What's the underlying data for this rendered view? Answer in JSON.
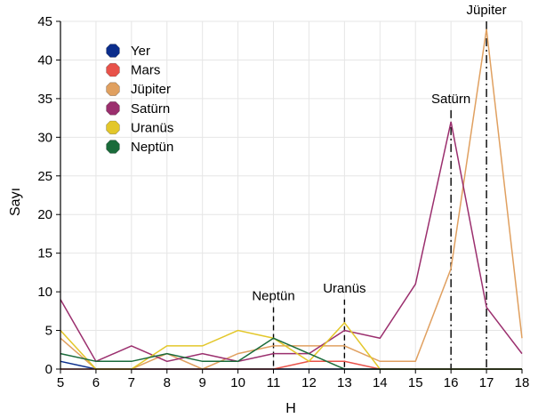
{
  "chart_data": {
    "type": "line",
    "xlabel": "H",
    "ylabel": "Sayı",
    "xlim": [
      5,
      18
    ],
    "ylim": [
      0,
      45
    ],
    "x_ticks": [
      5,
      6,
      7,
      8,
      9,
      10,
      11,
      12,
      13,
      14,
      15,
      16,
      17,
      18
    ],
    "y_ticks": [
      0,
      5,
      10,
      15,
      20,
      25,
      30,
      35,
      40,
      45
    ],
    "grid": true,
    "legend_position": "top-left",
    "x": [
      5,
      6,
      7,
      8,
      9,
      10,
      11,
      12,
      13,
      14,
      15,
      16,
      17,
      18
    ],
    "series": [
      {
        "name": "Yer",
        "color": "#0b2d8c",
        "values": [
          1,
          0,
          0,
          0,
          0,
          0,
          0,
          0,
          0,
          0,
          0,
          0,
          0,
          0
        ]
      },
      {
        "name": "Mars",
        "color": "#e8524a",
        "values": [
          0,
          0,
          0,
          0,
          0,
          0,
          0,
          1,
          1,
          0,
          0,
          0,
          0,
          0
        ]
      },
      {
        "name": "Jüpiter",
        "color": "#e0a060",
        "values": [
          4,
          0,
          0,
          2,
          0,
          2,
          3,
          3,
          3,
          1,
          1,
          13,
          44,
          4
        ]
      },
      {
        "name": "Satürn",
        "color": "#9b2f6e",
        "values": [
          9,
          1,
          3,
          1,
          2,
          1,
          2,
          2,
          5,
          4,
          11,
          32,
          8,
          2
        ]
      },
      {
        "name": "Uranüs",
        "color": "#e3c72a",
        "values": [
          5,
          0,
          0,
          3,
          3,
          5,
          4,
          1,
          6,
          0,
          0,
          0,
          0,
          0
        ]
      },
      {
        "name": "Neptün",
        "color": "#1a6b3a",
        "values": [
          2,
          1,
          1,
          2,
          1,
          1,
          4,
          2,
          0,
          0,
          0,
          0,
          0,
          0
        ]
      }
    ],
    "annotations": [
      {
        "label": "Neptün",
        "x": 11,
        "y_top": 8,
        "style": "dashed"
      },
      {
        "label": "Uranüs",
        "x": 13,
        "y_top": 9,
        "style": "dashed"
      },
      {
        "label": "Satürn",
        "x": 16,
        "y_top": 33.5,
        "style": "dash-dot"
      },
      {
        "label": "Jüpiter",
        "x": 17,
        "y_top": 45,
        "style": "dash-dot"
      }
    ]
  }
}
